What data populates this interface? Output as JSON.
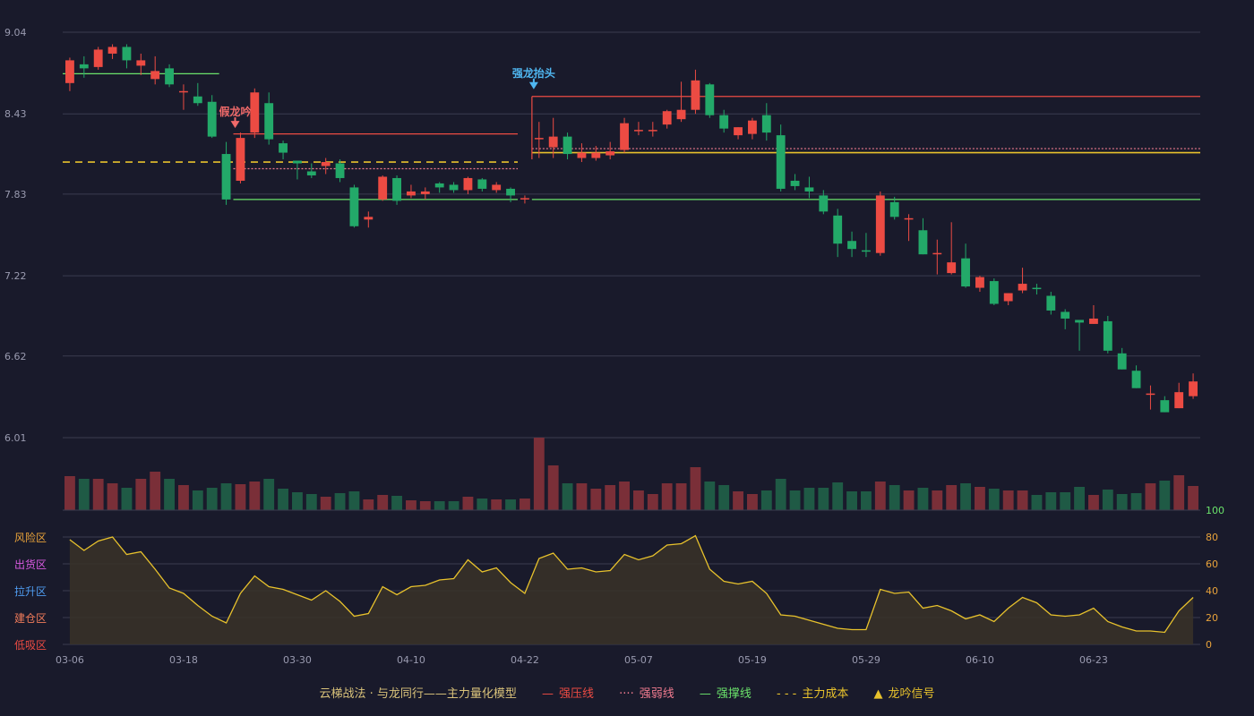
{
  "colors": {
    "background": "#191a2b",
    "up": "#ec4b43",
    "down": "#23a969",
    "volume_up": "#7a2f38",
    "volume_down": "#1f5a45",
    "grid": "#3a3c4f",
    "axis_text": "#9a9bb0",
    "pressure": "#ec4b43",
    "weak": "#f07b8f",
    "support": "#6be36b",
    "cost": "#e8c22c",
    "signal_blue": "#4fb6f0",
    "signal_red": "#f06a6a",
    "oscillator": "#e8c22c"
  },
  "chart_data": [
    {
      "type": "candlestick",
      "yticks": [
        "9.04",
        "8.43",
        "7.83",
        "7.22",
        "6.62",
        "6.01"
      ],
      "ylim": [
        6.01,
        9.04
      ],
      "xticks": [
        {
          "i": 0,
          "label": "03-06"
        },
        {
          "i": 8,
          "label": "03-18"
        },
        {
          "i": 16,
          "label": "03-30"
        },
        {
          "i": 24,
          "label": "04-10"
        },
        {
          "i": 32,
          "label": "04-22"
        },
        {
          "i": 40,
          "label": "05-07"
        },
        {
          "i": 48,
          "label": "05-19"
        },
        {
          "i": 56,
          "label": "05-29"
        },
        {
          "i": 64,
          "label": "06-10"
        },
        {
          "i": 72,
          "label": "06-23"
        }
      ],
      "candles": [
        [
          8.66,
          8.83,
          8.6,
          8.85
        ],
        [
          8.8,
          8.77,
          8.7,
          8.86
        ],
        [
          8.78,
          8.91,
          8.76,
          8.93
        ],
        [
          8.88,
          8.93,
          8.84,
          8.95
        ],
        [
          8.93,
          8.83,
          8.77,
          8.95
        ],
        [
          8.79,
          8.83,
          8.72,
          8.88
        ],
        [
          8.69,
          8.75,
          8.65,
          8.86
        ],
        [
          8.77,
          8.65,
          8.63,
          8.8
        ],
        [
          8.6,
          8.6,
          8.46,
          8.65
        ],
        [
          8.56,
          8.51,
          8.49,
          8.66
        ],
        [
          8.52,
          8.26,
          8.25,
          8.57
        ],
        [
          8.13,
          7.79,
          7.75,
          8.22
        ],
        [
          7.93,
          8.25,
          7.91,
          8.29
        ],
        [
          8.29,
          8.59,
          8.25,
          8.62
        ],
        [
          8.51,
          8.24,
          8.2,
          8.59
        ],
        [
          8.21,
          8.14,
          8.09,
          8.23
        ],
        [
          8.08,
          8.06,
          7.94,
          8.08
        ],
        [
          8.0,
          7.97,
          7.95,
          8.06
        ],
        [
          8.04,
          8.07,
          7.98,
          8.1
        ],
        [
          8.06,
          7.95,
          7.92,
          8.09
        ],
        [
          7.88,
          7.59,
          7.58,
          7.9
        ],
        [
          7.64,
          7.66,
          7.58,
          7.7
        ],
        [
          7.79,
          7.96,
          7.78,
          7.97
        ],
        [
          7.95,
          7.78,
          7.75,
          7.97
        ],
        [
          7.82,
          7.85,
          7.8,
          7.9
        ],
        [
          7.83,
          7.85,
          7.79,
          7.88
        ],
        [
          7.91,
          7.88,
          7.84,
          7.92
        ],
        [
          7.9,
          7.86,
          7.84,
          7.92
        ],
        [
          7.86,
          7.95,
          7.83,
          7.96
        ],
        [
          7.94,
          7.87,
          7.85,
          7.95
        ],
        [
          7.86,
          7.9,
          7.84,
          7.92
        ],
        [
          7.87,
          7.82,
          7.77,
          7.88
        ],
        [
          7.79,
          7.8,
          7.76,
          7.82
        ],
        [
          8.24,
          8.25,
          8.1,
          8.37
        ],
        [
          8.18,
          8.26,
          8.1,
          8.4
        ],
        [
          8.26,
          8.13,
          8.09,
          8.29
        ],
        [
          8.1,
          8.14,
          8.07,
          8.21
        ],
        [
          8.1,
          8.14,
          8.08,
          8.19
        ],
        [
          8.12,
          8.15,
          8.09,
          8.22
        ],
        [
          8.16,
          8.36,
          8.14,
          8.4
        ],
        [
          8.31,
          8.31,
          8.27,
          8.37
        ],
        [
          8.3,
          8.31,
          8.26,
          8.37
        ],
        [
          8.35,
          8.45,
          8.32,
          8.46
        ],
        [
          8.39,
          8.46,
          8.37,
          8.67
        ],
        [
          8.46,
          8.68,
          8.43,
          8.76
        ],
        [
          8.65,
          8.42,
          8.4,
          8.66
        ],
        [
          8.42,
          8.32,
          8.29,
          8.46
        ],
        [
          8.27,
          8.33,
          8.24,
          8.33
        ],
        [
          8.28,
          8.38,
          8.24,
          8.4
        ],
        [
          8.42,
          8.29,
          8.23,
          8.51
        ],
        [
          8.27,
          7.87,
          7.85,
          8.35
        ],
        [
          7.93,
          7.89,
          7.86,
          7.98
        ],
        [
          7.88,
          7.85,
          7.8,
          7.96
        ],
        [
          7.82,
          7.7,
          7.68,
          7.86
        ],
        [
          7.67,
          7.46,
          7.36,
          7.72
        ],
        [
          7.48,
          7.42,
          7.36,
          7.55
        ],
        [
          7.41,
          7.4,
          7.36,
          7.54
        ],
        [
          7.39,
          7.82,
          7.37,
          7.85
        ],
        [
          7.77,
          7.66,
          7.64,
          7.81
        ],
        [
          7.64,
          7.65,
          7.48,
          7.68
        ],
        [
          7.56,
          7.38,
          7.38,
          7.65
        ],
        [
          7.38,
          7.39,
          7.23,
          7.49
        ],
        [
          7.24,
          7.32,
          7.23,
          7.62
        ],
        [
          7.35,
          7.14,
          7.13,
          7.46
        ],
        [
          7.13,
          7.21,
          7.1,
          7.22
        ],
        [
          7.18,
          7.01,
          7.0,
          7.2
        ],
        [
          7.03,
          7.09,
          7.0,
          7.09
        ],
        [
          7.11,
          7.16,
          7.09,
          7.28
        ],
        [
          7.13,
          7.12,
          7.08,
          7.16
        ],
        [
          7.07,
          6.96,
          6.93,
          7.1
        ],
        [
          6.95,
          6.9,
          6.82,
          6.97
        ],
        [
          6.89,
          6.87,
          6.66,
          6.88
        ],
        [
          6.86,
          6.9,
          6.86,
          7.0
        ],
        [
          6.88,
          6.66,
          6.64,
          6.92
        ],
        [
          6.64,
          6.52,
          6.52,
          6.68
        ],
        [
          6.51,
          6.38,
          6.38,
          6.55
        ],
        [
          6.34,
          6.34,
          6.22,
          6.4
        ],
        [
          6.29,
          6.2,
          6.2,
          6.32
        ],
        [
          6.23,
          6.35,
          6.23,
          6.42
        ],
        [
          6.32,
          6.43,
          6.3,
          6.49
        ]
      ],
      "volume": [
        38,
        35,
        35,
        30,
        25,
        35,
        43,
        35,
        28,
        22,
        25,
        30,
        29,
        32,
        35,
        24,
        20,
        18,
        15,
        19,
        21,
        12,
        17,
        16,
        11,
        10,
        10,
        10,
        15,
        13,
        12,
        12,
        13,
        81,
        50,
        30,
        30,
        24,
        28,
        32,
        22,
        18,
        30,
        30,
        48,
        32,
        28,
        21,
        18,
        22,
        35,
        22,
        25,
        25,
        31,
        21,
        21,
        32,
        28,
        22,
        25,
        22,
        28,
        30,
        26,
        24,
        22,
        22,
        17,
        20,
        20,
        26,
        17,
        23,
        18,
        19,
        30,
        33,
        39,
        27
      ],
      "lines": {
        "pressure_1": {
          "value": 8.28,
          "from": 12,
          "to": 32
        },
        "pressure_2": {
          "value": 8.56,
          "from": 33,
          "to": 80
        },
        "weak_1": {
          "value": 8.02,
          "from": 12,
          "to": 32
        },
        "weak_2": {
          "value": 8.17,
          "from": 33,
          "to": 80
        },
        "support_0": {
          "value": 8.73,
          "from": 0,
          "to": 11
        },
        "support_1": {
          "value": 7.79,
          "from": 12,
          "to": 32
        },
        "support_2": {
          "value": 7.79,
          "from": 33,
          "to": 80
        },
        "cost_1": {
          "value": 8.07,
          "from": 0,
          "to": 32
        },
        "cost_2": {
          "value": 8.14,
          "from": 33,
          "to": 80
        }
      },
      "signals": [
        {
          "i": 12,
          "label": "假龙吟",
          "color": "#f06a6a",
          "value": 8.31
        },
        {
          "i": 33,
          "label": "强龙抬头",
          "color": "#4fb6f0",
          "value": 8.6
        }
      ]
    },
    {
      "type": "area",
      "ylim": [
        0,
        100
      ],
      "yticks": [
        "100",
        "80",
        "60",
        "40",
        "20",
        "0"
      ],
      "zones": [
        "风险区",
        "出货区",
        "拉升区",
        "建仓区",
        "低吸区"
      ],
      "zone_colors": [
        "#e8a23a",
        "#d85ae0",
        "#4f9cf0",
        "#f07b5a",
        "#ec4b43"
      ],
      "values": [
        78,
        70,
        77,
        80,
        67,
        69,
        56,
        42,
        38,
        29,
        21,
        16,
        38,
        51,
        43,
        41,
        37,
        33,
        40,
        32,
        21,
        23,
        43,
        37,
        43,
        44,
        48,
        49,
        63,
        54,
        57,
        46,
        38,
        64,
        68,
        56,
        57,
        54,
        55,
        67,
        63,
        66,
        74,
        75,
        81,
        56,
        47,
        45,
        47,
        38,
        22,
        21,
        18,
        15,
        12,
        11,
        11,
        41,
        38,
        39,
        27,
        29,
        25,
        19,
        22,
        17,
        27,
        35,
        31,
        22,
        21,
        22,
        27,
        17,
        13,
        10,
        10,
        9,
        25,
        35
      ]
    }
  ],
  "legend": {
    "title": "云梯战法 · 与龙同行——主力量化模型",
    "items": [
      {
        "symbol": "—",
        "label": "强压线",
        "color": "#ec4b43"
      },
      {
        "symbol": "····",
        "label": "强弱线",
        "color": "#f07b8f"
      },
      {
        "symbol": "—",
        "label": "强撑线",
        "color": "#6be36b"
      },
      {
        "symbol": "- - -",
        "label": "主力成本",
        "color": "#e8c22c"
      },
      {
        "symbol": "▲",
        "label": "龙吟信号",
        "color": "#e8c22c"
      }
    ]
  }
}
